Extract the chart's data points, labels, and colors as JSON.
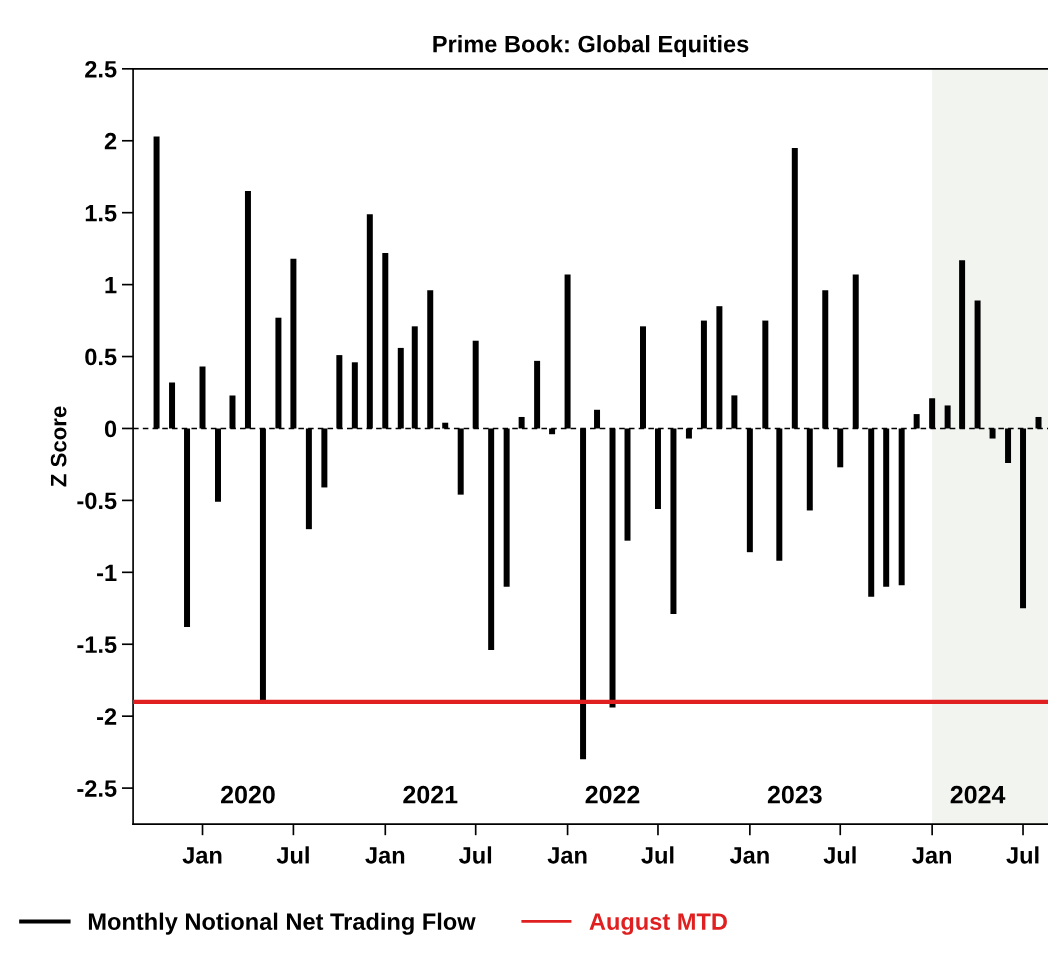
{
  "chart_data": {
    "type": "bar",
    "title": "Prime Book: Global Equities",
    "ylabel": "Z Score",
    "x": [
      "2019-10",
      "2019-11",
      "2019-12",
      "2020-01",
      "2020-02",
      "2020-03",
      "2020-04",
      "2020-05",
      "2020-06",
      "2020-07",
      "2020-08",
      "2020-09",
      "2020-10",
      "2020-11",
      "2020-12",
      "2021-01",
      "2021-02",
      "2021-03",
      "2021-04",
      "2021-05",
      "2021-06",
      "2021-07",
      "2021-08",
      "2021-09",
      "2021-10",
      "2021-11",
      "2021-12",
      "2022-01",
      "2022-02",
      "2022-03",
      "2022-04",
      "2022-05",
      "2022-06",
      "2022-07",
      "2022-08",
      "2022-09",
      "2022-10",
      "2022-11",
      "2022-12",
      "2023-01",
      "2023-02",
      "2023-03",
      "2023-04",
      "2023-05",
      "2023-06",
      "2023-07",
      "2023-08",
      "2023-09",
      "2023-10",
      "2023-11",
      "2023-12",
      "2024-01",
      "2024-02",
      "2024-03",
      "2024-04",
      "2024-05",
      "2024-06",
      "2024-07",
      "2024-08"
    ],
    "series": [
      {
        "name": "Monthly Notional Net Trading Flow",
        "color": "#000000",
        "values": [
          2.03,
          0.32,
          -1.38,
          0.43,
          -0.51,
          0.23,
          1.65,
          -1.9,
          0.77,
          1.18,
          -0.7,
          -0.41,
          0.51,
          0.46,
          1.49,
          1.22,
          0.56,
          0.71,
          0.96,
          0.04,
          -0.46,
          0.61,
          -1.54,
          -1.1,
          0.08,
          0.47,
          -0.04,
          1.07,
          -2.3,
          0.13,
          -1.94,
          -0.78,
          0.71,
          -0.56,
          -1.29,
          -0.07,
          0.75,
          0.85,
          0.23,
          -0.86,
          0.75,
          -0.92,
          1.95,
          -0.57,
          0.96,
          -0.27,
          1.07,
          -1.17,
          -1.1,
          -1.09,
          0.1,
          0.21,
          0.16,
          1.17,
          0.89,
          -0.07,
          -0.24,
          -1.25,
          0.08
        ]
      }
    ],
    "ref_lines": [
      {
        "axis": "y",
        "value": -1.9,
        "label": "August MTD",
        "color": "#e02020"
      },
      {
        "axis": "y",
        "value": 0,
        "color": "#000000",
        "line_style": "dashed"
      }
    ],
    "x2lim": [
      "2019-08-15",
      "2024-08-20"
    ],
    "bands": [
      {
        "axis": "x",
        "from": "2024-01-01",
        "to": "2024-08-20",
        "color": "#f2f4f0"
      }
    ],
    "xlim": [
      "2019-08-15",
      "2024-08-20"
    ],
    "xticks": [
      {
        "value": "2020-01-01",
        "label": "Jan"
      },
      {
        "value": "2020-07-01",
        "label": "Jul"
      },
      {
        "value": "2021-01-01",
        "label": "Jan"
      },
      {
        "value": "2021-07-01",
        "label": "Jul"
      },
      {
        "value": "2022-01-01",
        "label": "Jan"
      },
      {
        "value": "2022-07-01",
        "label": "Jul"
      },
      {
        "value": "2023-01-01",
        "label": "Jan"
      },
      {
        "value": "2023-07-01",
        "label": "Jul"
      },
      {
        "value": "2024-01-01",
        "label": "Jan"
      },
      {
        "value": "2024-07-01",
        "label": "Jul"
      }
    ],
    "x2ticks": [
      {
        "value": "2020-04-01",
        "label": "2020"
      },
      {
        "value": "2021-04-01",
        "label": "2021"
      },
      {
        "value": "2022-04-01",
        "label": "2022"
      },
      {
        "value": "2023-04-01",
        "label": "2023"
      },
      {
        "value": "2024-04-01",
        "label": "2024"
      }
    ],
    "ylim": [
      -2.75,
      2.5
    ],
    "yticks": [
      -2.5,
      -2,
      -1.5,
      -1,
      -0.5,
      0,
      0.5,
      1,
      1.5,
      2,
      2.5
    ],
    "grid": false,
    "legend": "bottom"
  }
}
